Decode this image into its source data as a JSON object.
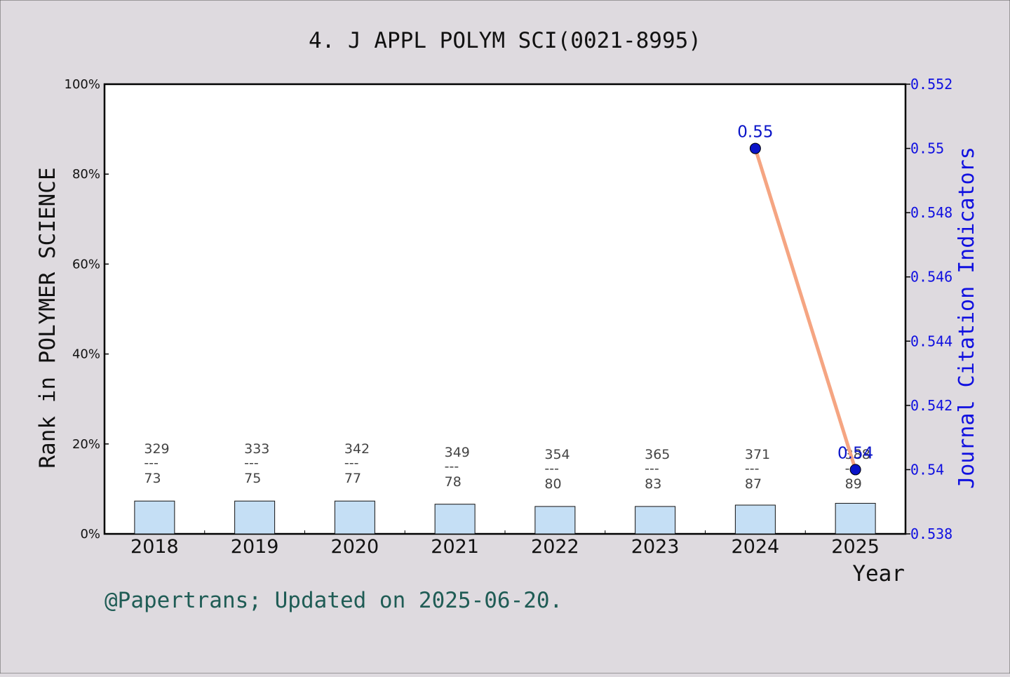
{
  "title": "4. J APPL POLYM SCI(0021-8995)",
  "left_axis_label": "Rank in POLYMER SCIENCE",
  "right_axis_label": "Journal Citation Indicators",
  "x_axis_label": "Year",
  "footer": "@Papertrans; Updated on 2025-06-20.",
  "colors": {
    "background": "#dedadf",
    "plot_bg": "#ffffff",
    "bar_fill": "#c5dff5",
    "line": "#f5a582",
    "marker": "#0a14c8",
    "right_axis": "#1010e0",
    "footer": "#1f5c55",
    "bar_label": "#444444"
  },
  "chart_data": {
    "type": "bar+line",
    "categories": [
      "2018",
      "2019",
      "2020",
      "2021",
      "2022",
      "2023",
      "2024",
      "2025"
    ],
    "left_axis": {
      "ylim": [
        0,
        100
      ],
      "ticks": [
        "0%",
        "20%",
        "40%",
        "60%",
        "80%",
        "100%"
      ]
    },
    "right_axis": {
      "ylim": [
        0.538,
        0.552
      ],
      "ticks": [
        "0.538",
        "0.54",
        "0.542",
        "0.544",
        "0.546",
        "0.548",
        "0.55",
        "0.552"
      ]
    },
    "bars": {
      "rank": [
        73,
        75,
        77,
        78,
        80,
        83,
        87,
        89
      ],
      "total": [
        329,
        333,
        342,
        349,
        354,
        365,
        371,
        388
      ],
      "percent": [
        7.3,
        7.3,
        7.3,
        6.6,
        6.1,
        6.1,
        6.4,
        6.8
      ]
    },
    "line": {
      "categories": [
        "2024",
        "2025"
      ],
      "values": [
        0.55,
        0.54
      ],
      "labels": [
        "0.55",
        "0.54"
      ]
    },
    "bar_label_separator": "---",
    "grid": false
  }
}
